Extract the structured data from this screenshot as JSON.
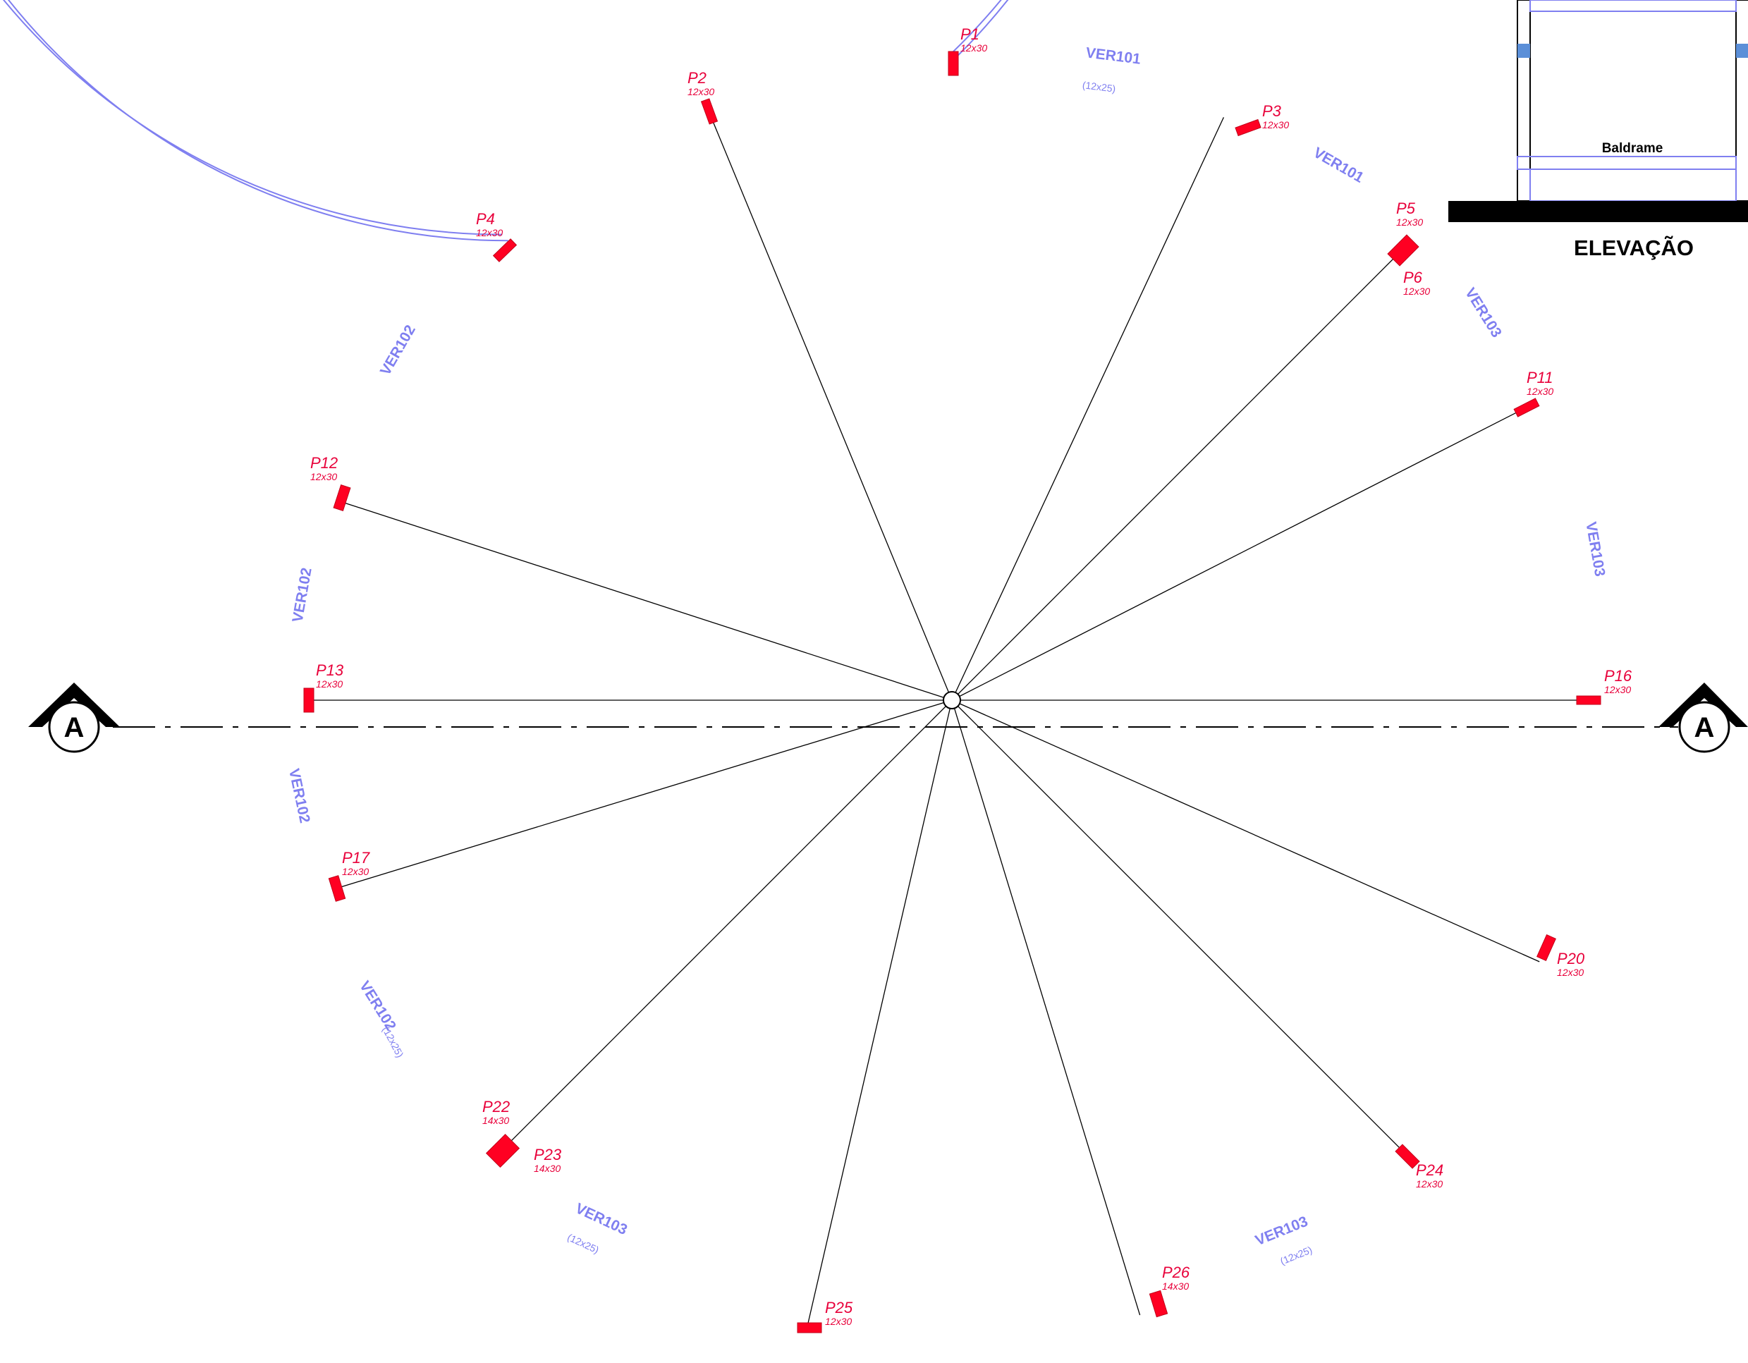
{
  "section_marker": {
    "letter": "A"
  },
  "elevation": {
    "title": "ELEVAÇÃO",
    "label": "Baldrame"
  },
  "pillars": [
    {
      "id": "P1",
      "name": "P1",
      "size": "12x30",
      "angle": 270
    },
    {
      "id": "P2",
      "name": "P2",
      "size": "12x30",
      "angle": 250
    },
    {
      "id": "P3",
      "name": "P3",
      "size": "12x30",
      "angle": 295
    },
    {
      "id": "P4",
      "name": "P4",
      "size": "12x30",
      "angle": 226
    },
    {
      "id": "P5",
      "name": "P5",
      "size": "12x30",
      "angle": 315
    },
    {
      "id": "P6",
      "name": "P6",
      "size": "12x30",
      "angle": 315
    },
    {
      "id": "P11",
      "name": "P11",
      "size": "12x30",
      "angle": 333
    },
    {
      "id": "P12",
      "name": "P12",
      "size": "12x30",
      "angle": 198
    },
    {
      "id": "P13",
      "name": "P13",
      "size": "12x30",
      "angle": 180
    },
    {
      "id": "P16",
      "name": "P16",
      "size": "12x30",
      "angle": 0
    },
    {
      "id": "P17",
      "name": "P17",
      "size": "12x30",
      "angle": 163
    },
    {
      "id": "P20",
      "name": "P20",
      "size": "12x30",
      "angle": 24
    },
    {
      "id": "P22",
      "name": "P22",
      "size": "14x30",
      "angle": 135
    },
    {
      "id": "P23",
      "name": "P23",
      "size": "14x30",
      "angle": 135
    },
    {
      "id": "P24",
      "name": "P24",
      "size": "12x30",
      "angle": 45
    },
    {
      "id": "P25",
      "name": "P25",
      "size": "12x30",
      "angle": 103
    },
    {
      "id": "P26",
      "name": "P26",
      "size": "14x30",
      "angle": 73
    }
  ],
  "beams": [
    {
      "name": "VER101",
      "size": "(12x25)"
    },
    {
      "name": "VER101",
      "size": ""
    },
    {
      "name": "VER102",
      "size": ""
    },
    {
      "name": "VER102",
      "size": ""
    },
    {
      "name": "VER102",
      "size": ""
    },
    {
      "name": "VER102",
      "size": "(12x25)"
    },
    {
      "name": "VER103",
      "size": ""
    },
    {
      "name": "VER103",
      "size": ""
    },
    {
      "name": "VER103",
      "size": "(12x25)"
    },
    {
      "name": "VER103",
      "size": "(12x25)"
    }
  ],
  "colors": {
    "pillar": "#ff0022",
    "pillar_text": "#e8003a",
    "beam": "#7f7ff0",
    "line": "#000000"
  }
}
